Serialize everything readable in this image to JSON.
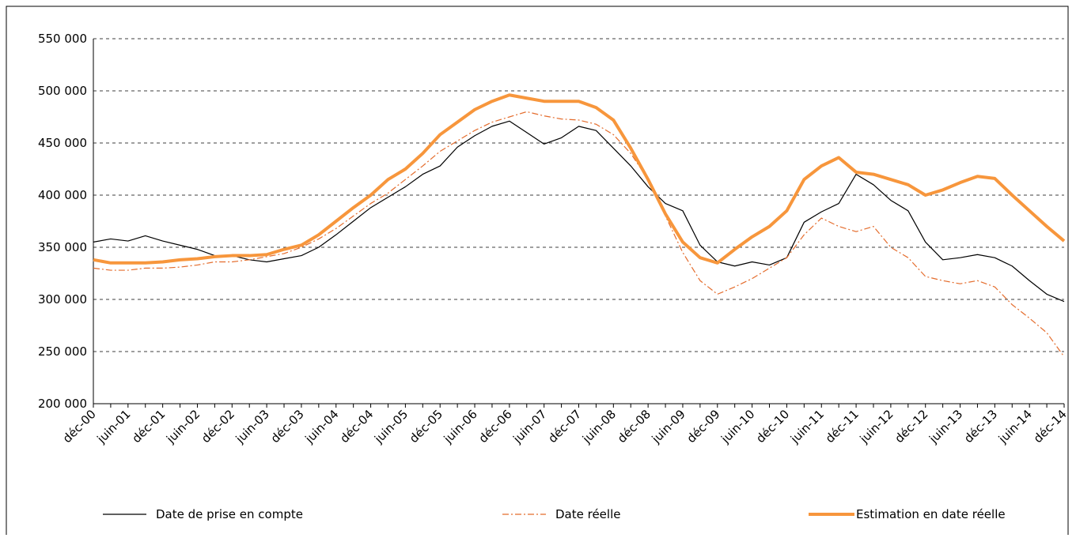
{
  "chart_data": {
    "type": "line",
    "categories": [
      "déc-00",
      null,
      "juin-01",
      null,
      "déc-01",
      null,
      "juin-02",
      null,
      "déc-02",
      null,
      "juin-03",
      null,
      "déc-03",
      null,
      "juin-04",
      null,
      "déc-04",
      null,
      "juin-05",
      null,
      "déc-05",
      null,
      "juin-06",
      null,
      "déc-06",
      null,
      "juin-07",
      null,
      "déc-07",
      null,
      "juin-08",
      null,
      "déc-08",
      null,
      "juin-09",
      null,
      "déc-09",
      null,
      "juin-10",
      null,
      "déc-10",
      null,
      "juin-11",
      null,
      "déc-11",
      null,
      "juin-12",
      null,
      "déc-12",
      null,
      "juin-13",
      null,
      "déc-13",
      null,
      "juin-14",
      null,
      "déc-14"
    ],
    "series": [
      {
        "name": "Date de prise en compte",
        "color": "#000000",
        "style": "solid",
        "width": 1.2,
        "values": [
          355000,
          358000,
          356000,
          361000,
          356000,
          352000,
          348000,
          342000,
          342000,
          338000,
          336000,
          339000,
          342000,
          350000,
          362000,
          375000,
          388000,
          398000,
          408000,
          420000,
          428000,
          446000,
          457000,
          466000,
          471000,
          460000,
          449000,
          455000,
          466000,
          462000,
          445000,
          428000,
          408000,
          392000,
          385000,
          352000,
          336000,
          332000,
          336000,
          333000,
          340000,
          374000,
          384000,
          392000,
          420000,
          410000,
          395000,
          385000,
          355000,
          338000,
          340000,
          343000,
          340000,
          332000,
          318000,
          305000,
          298000
        ]
      },
      {
        "name": "Date réelle",
        "color": "#e46c2c",
        "style": "dashdot",
        "width": 1.2,
        "values": [
          330000,
          328000,
          328000,
          330000,
          330000,
          331000,
          333000,
          336000,
          336000,
          338000,
          341000,
          344000,
          350000,
          358000,
          368000,
          380000,
          392000,
          402000,
          415000,
          428000,
          442000,
          452000,
          462000,
          470000,
          475000,
          480000,
          476000,
          473000,
          472000,
          468000,
          458000,
          440000,
          415000,
          380000,
          345000,
          318000,
          305000,
          312000,
          320000,
          330000,
          340000,
          362000,
          378000,
          370000,
          365000,
          370000,
          350000,
          340000,
          322000,
          318000,
          315000,
          318000,
          312000,
          295000,
          282000,
          268000,
          245000
        ]
      },
      {
        "name": "Estimation en date réelle",
        "color": "#f7963c",
        "style": "solid",
        "width": 4,
        "values": [
          338000,
          335000,
          335000,
          335000,
          336000,
          338000,
          339000,
          341000,
          342000,
          342000,
          343000,
          348000,
          352000,
          362000,
          375000,
          388000,
          400000,
          415000,
          425000,
          440000,
          458000,
          470000,
          482000,
          490000,
          496000,
          493000,
          490000,
          490000,
          490000,
          484000,
          472000,
          445000,
          415000,
          382000,
          355000,
          340000,
          335000,
          348000,
          360000,
          370000,
          385000,
          415000,
          428000,
          436000,
          422000,
          420000,
          415000,
          410000,
          400000,
          405000,
          412000,
          418000,
          416000,
          400000,
          385000,
          370000,
          356000
        ]
      }
    ],
    "ylim": [
      200000,
      550000
    ],
    "yticks": [
      {
        "value": 200000,
        "label": "200 000"
      },
      {
        "value": 250000,
        "label": "250 000"
      },
      {
        "value": 300000,
        "label": "300 000"
      },
      {
        "value": 350000,
        "label": "350 000"
      },
      {
        "value": 400000,
        "label": "400 000"
      },
      {
        "value": 450000,
        "label": "450 000"
      },
      {
        "value": 500000,
        "label": "500 000"
      },
      {
        "value": 550000,
        "label": "550 000"
      }
    ],
    "grid": true,
    "legend": "bottom"
  }
}
